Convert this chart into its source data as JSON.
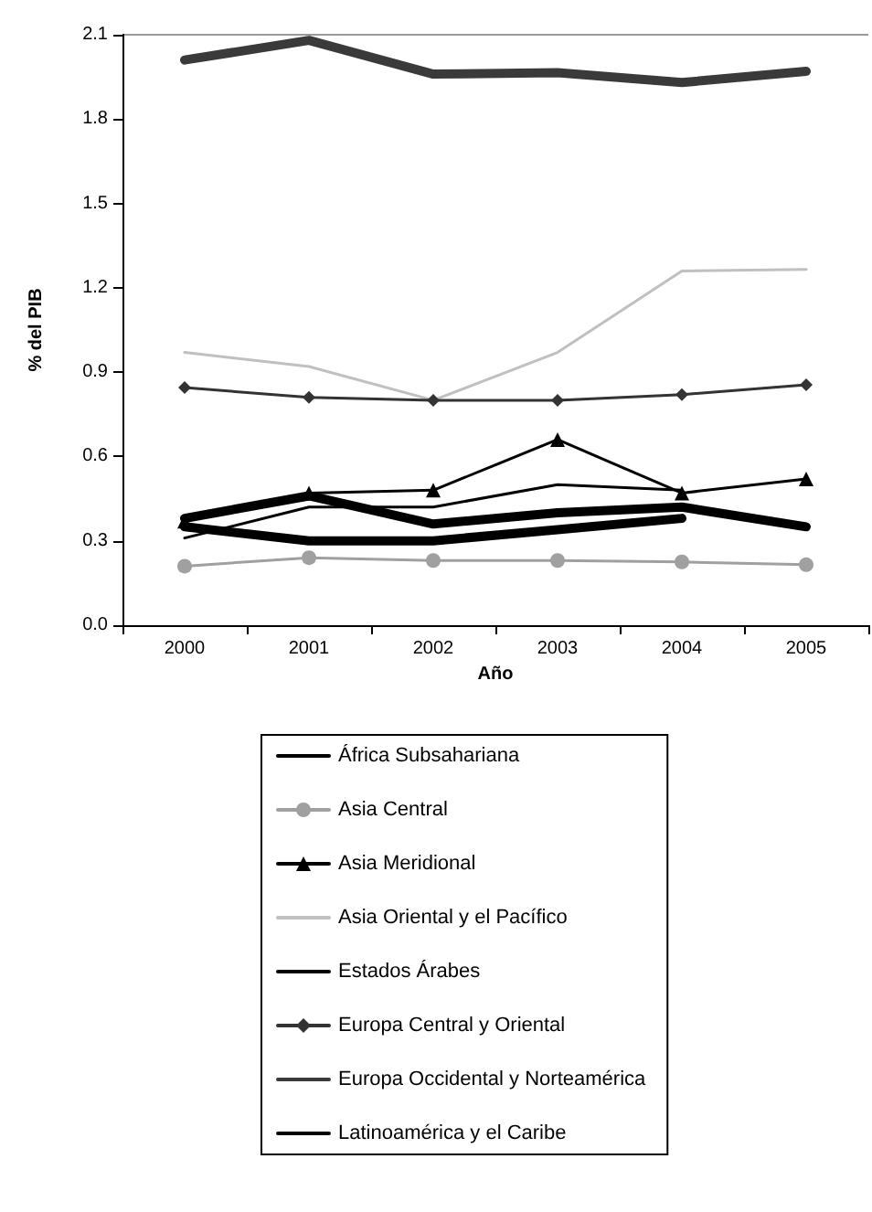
{
  "chart_data": {
    "type": "line",
    "xlabel": "Año",
    "ylabel": "% del PIB",
    "categories": [
      "2000",
      "2001",
      "2002",
      "2003",
      "2004",
      "2005"
    ],
    "ylim": [
      0,
      2.1
    ],
    "yticks": [
      {
        "value": 0,
        "label": "0.0"
      },
      0.3,
      0.6,
      0.9,
      1.2,
      1.5,
      1.8,
      2.1
    ],
    "grid": false,
    "legend": "bottom",
    "marker": "none",
    "line_style": "solid",
    "series": [
      {
        "name": "África Subsahariana",
        "color": "#000000",
        "values": [
          0.35,
          0.3,
          0.3,
          0.34,
          0.38,
          null
        ]
      },
      {
        "name": "Asia Central",
        "color": "#a0a0a0",
        "marker": "circle",
        "values": [
          0.21,
          0.24,
          0.23,
          0.23,
          0.225,
          0.215
        ]
      },
      {
        "name": "Asia Meridional",
        "color": "#000000",
        "marker": "triangle",
        "values": [
          0.37,
          0.47,
          0.48,
          0.66,
          0.47,
          0.52
        ]
      },
      {
        "name": "Asia Oriental y el Pacífico",
        "color": "#c0c0c0",
        "values": [
          0.97,
          0.92,
          0.8,
          0.97,
          1.26,
          1.265
        ]
      },
      {
        "name": "Estados Árabes",
        "color": "#000000",
        "values": [
          0.31,
          0.42,
          0.42,
          0.5,
          0.48,
          null
        ]
      },
      {
        "name": "Europa Central y Oriental",
        "color": "#333333",
        "marker": "diamond",
        "values": [
          0.845,
          0.81,
          0.8,
          0.8,
          0.82,
          0.855
        ]
      },
      {
        "name": "Europa Occidental y Norteamérica",
        "color": "#3a3a3a",
        "values": [
          2.01,
          2.08,
          1.96,
          1.965,
          1.93,
          1.97
        ]
      },
      {
        "name": "Latinoamérica y el Caribe",
        "color": "#000000",
        "values": [
          0.38,
          0.46,
          0.36,
          0.4,
          0.42,
          0.35
        ]
      }
    ]
  }
}
